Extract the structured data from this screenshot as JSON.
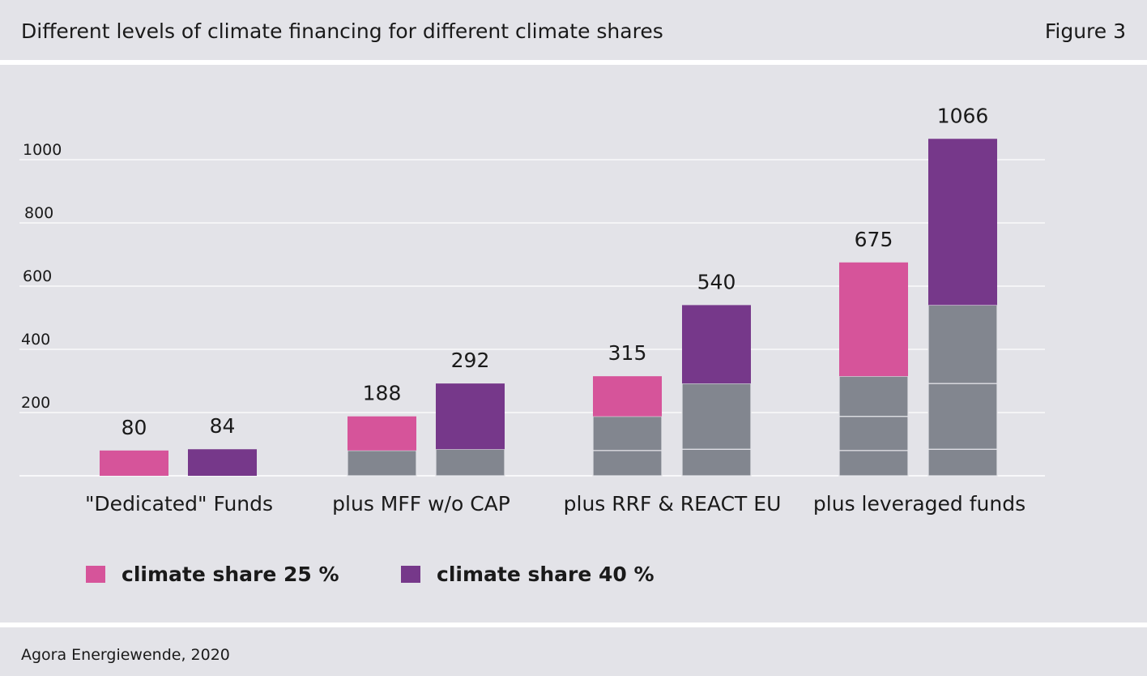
{
  "header": {
    "title": "Different levels of climate financing for different climate shares",
    "figure_label": "Figure 3"
  },
  "footer": {
    "source": "Agora Energiewende, 2020"
  },
  "colors": {
    "pink": "#d6549a",
    "purple": "#76388a",
    "gray": "#82868f",
    "background": "#e3e3e8",
    "gridline": "#ffffff"
  },
  "chart_data": {
    "type": "bar",
    "stacked": true,
    "categories": [
      "\"Dedicated\" Funds",
      "plus MFF w/o CAP",
      "plus RRF & REACT EU",
      "plus leveraged funds"
    ],
    "y_ticks": [
      200,
      400,
      600,
      800,
      1000
    ],
    "ylim": [
      0,
      1066
    ],
    "grid": true,
    "legend_position": "bottom-left",
    "series": [
      {
        "name": "climate share 25 %",
        "color": "#d6549a",
        "totals": [
          80,
          188,
          315,
          675
        ],
        "segments": [
          [
            80
          ],
          [
            80,
            108
          ],
          [
            80,
            108,
            127
          ],
          [
            80,
            108,
            127,
            360
          ]
        ]
      },
      {
        "name": "climate share 40 %",
        "color": "#76388a",
        "totals": [
          84,
          292,
          540,
          1066
        ],
        "segments": [
          [
            84
          ],
          [
            84,
            208
          ],
          [
            84,
            208,
            248
          ],
          [
            84,
            208,
            248,
            526
          ]
        ]
      }
    ]
  }
}
